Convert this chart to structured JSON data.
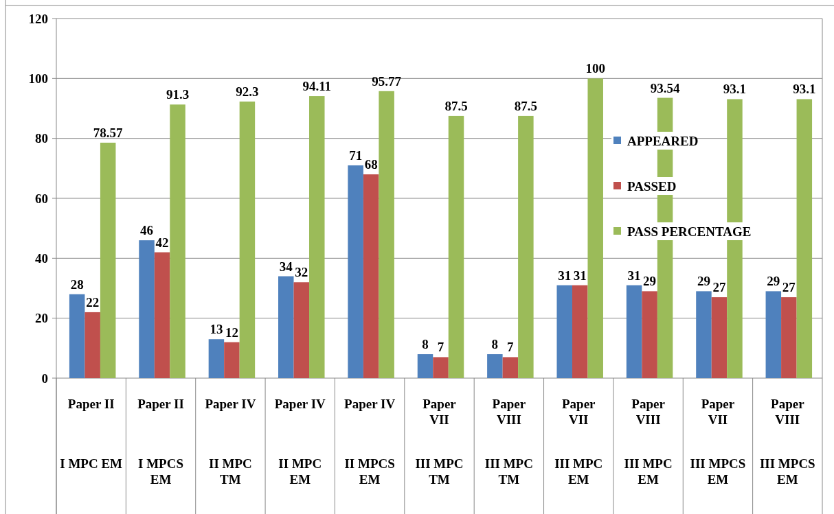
{
  "chart_data": {
    "type": "bar",
    "categories": [
      "Paper II\nI MPC EM",
      "Paper II\nI MPCS EM",
      "Paper IV\nII MPC TM",
      "Paper IV\nII MPC EM",
      "Paper IV\nII MPCS EM",
      "Paper VII\nIII MPC TM",
      "Paper VIII\nIII MPC TM",
      "Paper VII\nIII MPC EM",
      "Paper VIII\nIII MPC EM",
      "Paper VII\nIII MPCS EM",
      "Paper VIII\nIII MPCS EM"
    ],
    "series": [
      {
        "name": "APPEARED",
        "color": "#4f81bd",
        "values": [
          28,
          46,
          13,
          34,
          71,
          8,
          8,
          31,
          31,
          29,
          29
        ]
      },
      {
        "name": "PASSED",
        "color": "#c0504d",
        "values": [
          22,
          42,
          12,
          32,
          68,
          7,
          7,
          31,
          29,
          27,
          27
        ]
      },
      {
        "name": "PASS PERCENTAGE",
        "color": "#9bbb59",
        "values": [
          78.57,
          91.3,
          92.3,
          94.11,
          95.77,
          87.5,
          87.5,
          100,
          93.54,
          93.1,
          93.1
        ]
      }
    ],
    "ylim": [
      0,
      120
    ],
    "yticks": [
      0,
      20,
      40,
      60,
      80,
      100,
      120
    ],
    "grid": "y",
    "legend": "right",
    "data_labels": true
  }
}
